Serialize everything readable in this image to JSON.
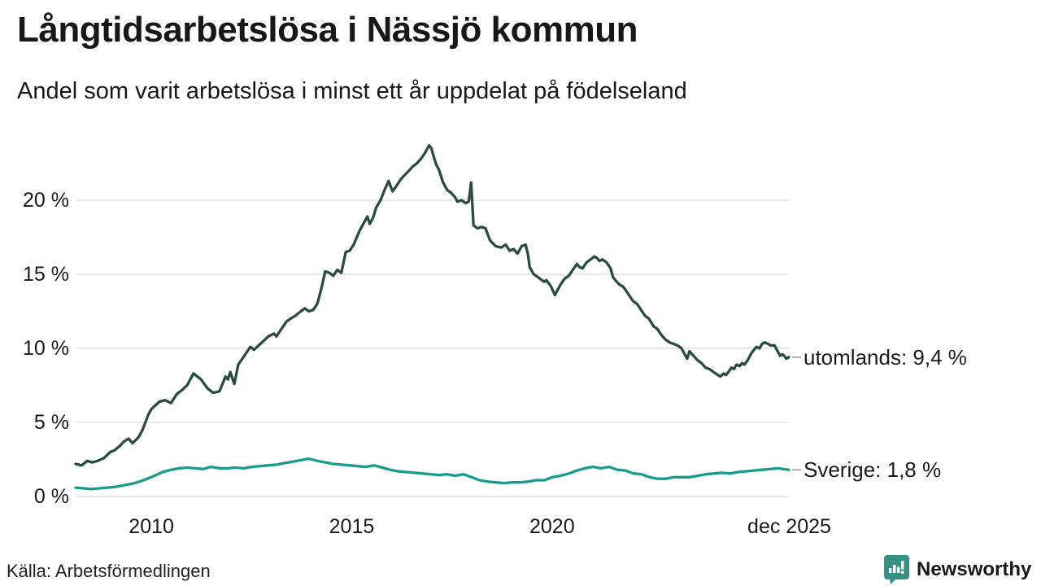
{
  "colors": {
    "utomlands": "#2a4c40",
    "sverige": "#199c8b",
    "grid": "#e2e2e2",
    "connector": "#9a9a9a",
    "text": "#1a1a1a",
    "brand": "#359184"
  },
  "footer": {
    "brand": "Newsworthy",
    "brand_icon": "newsworthy-bubble-chart-icon"
  },
  "chart_data": {
    "type": "line",
    "title": "Långtidsarbetslösa i Nässjö kommun",
    "subtitle": "Andel som varit arbetslösa i minst ett år uppdelat på födelseland",
    "source": "Källa: Arbetsförmedlingen",
    "legend_position": "end-of-line-labels-right",
    "grid": "horizontal-only",
    "x_axis": {
      "range": [
        2008.11,
        2025.91
      ],
      "ticks": [
        {
          "x": 2010,
          "label": "2010"
        },
        {
          "x": 2015,
          "label": "2015"
        },
        {
          "x": 2020,
          "label": "2020"
        },
        {
          "x": 2025.92,
          "label": "dec 2025"
        }
      ]
    },
    "y_axis": {
      "range": [
        0,
        24.5
      ],
      "unit": "%",
      "ticks": [
        {
          "v": 0,
          "label": "0 %"
        },
        {
          "v": 5,
          "label": "5 %"
        },
        {
          "v": 10,
          "label": "10 %"
        },
        {
          "v": 15,
          "label": "15 %"
        },
        {
          "v": 20,
          "label": "20 %"
        }
      ]
    },
    "series": [
      {
        "name": "utomlands",
        "label": "utomlands: 9,4 %",
        "last_value": 9.4,
        "color_key": "utomlands",
        "points": [
          [
            2008.11,
            2.2
          ],
          [
            2008.26,
            2.1
          ],
          [
            2008.4,
            2.4
          ],
          [
            2008.52,
            2.3
          ],
          [
            2008.66,
            2.4
          ],
          [
            2008.82,
            2.6
          ],
          [
            2008.97,
            3.0
          ],
          [
            2009.07,
            3.1
          ],
          [
            2009.21,
            3.4
          ],
          [
            2009.31,
            3.7
          ],
          [
            2009.43,
            3.9
          ],
          [
            2009.53,
            3.6
          ],
          [
            2009.68,
            4.0
          ],
          [
            2009.78,
            4.5
          ],
          [
            2009.92,
            5.5
          ],
          [
            2010.0,
            5.9
          ],
          [
            2010.08,
            6.1
          ],
          [
            2010.2,
            6.4
          ],
          [
            2010.34,
            6.5
          ],
          [
            2010.49,
            6.3
          ],
          [
            2010.63,
            6.9
          ],
          [
            2010.77,
            7.2
          ],
          [
            2010.89,
            7.5
          ],
          [
            2011.05,
            8.3
          ],
          [
            2011.24,
            7.9
          ],
          [
            2011.4,
            7.3
          ],
          [
            2011.54,
            7.0
          ],
          [
            2011.7,
            7.1
          ],
          [
            2011.85,
            8.1
          ],
          [
            2011.91,
            7.9
          ],
          [
            2011.97,
            8.4
          ],
          [
            2012.07,
            7.6
          ],
          [
            2012.17,
            8.9
          ],
          [
            2012.27,
            9.3
          ],
          [
            2012.37,
            9.7
          ],
          [
            2012.47,
            10.1
          ],
          [
            2012.56,
            9.9
          ],
          [
            2012.72,
            10.3
          ],
          [
            2012.92,
            10.8
          ],
          [
            2013.06,
            11.0
          ],
          [
            2013.12,
            10.8
          ],
          [
            2013.27,
            11.4
          ],
          [
            2013.37,
            11.8
          ],
          [
            2013.47,
            12.0
          ],
          [
            2013.59,
            12.2
          ],
          [
            2013.73,
            12.5
          ],
          [
            2013.83,
            12.7
          ],
          [
            2013.93,
            12.5
          ],
          [
            2014.04,
            12.6
          ],
          [
            2014.14,
            13.0
          ],
          [
            2014.24,
            14.0
          ],
          [
            2014.34,
            15.2
          ],
          [
            2014.44,
            15.1
          ],
          [
            2014.54,
            14.9
          ],
          [
            2014.64,
            15.3
          ],
          [
            2014.74,
            15.1
          ],
          [
            2014.85,
            16.5
          ],
          [
            2014.95,
            16.6
          ],
          [
            2015.05,
            17.0
          ],
          [
            2015.19,
            17.9
          ],
          [
            2015.31,
            18.5
          ],
          [
            2015.39,
            18.9
          ],
          [
            2015.45,
            18.4
          ],
          [
            2015.53,
            18.8
          ],
          [
            2015.61,
            19.5
          ],
          [
            2015.72,
            20.0
          ],
          [
            2015.82,
            20.7
          ],
          [
            2015.92,
            21.3
          ],
          [
            2016.02,
            20.6
          ],
          [
            2016.1,
            20.9
          ],
          [
            2016.22,
            21.4
          ],
          [
            2016.32,
            21.7
          ],
          [
            2016.43,
            22.0
          ],
          [
            2016.53,
            22.3
          ],
          [
            2016.63,
            22.5
          ],
          [
            2016.73,
            22.8
          ],
          [
            2016.83,
            23.2
          ],
          [
            2016.93,
            23.7
          ],
          [
            2016.99,
            23.5
          ],
          [
            2017.05,
            22.9
          ],
          [
            2017.11,
            22.4
          ],
          [
            2017.17,
            22.1
          ],
          [
            2017.28,
            21.2
          ],
          [
            2017.38,
            20.7
          ],
          [
            2017.48,
            20.5
          ],
          [
            2017.58,
            20.2
          ],
          [
            2017.64,
            19.9
          ],
          [
            2017.74,
            20.0
          ],
          [
            2017.84,
            19.8
          ],
          [
            2017.92,
            19.9
          ],
          [
            2017.98,
            21.2
          ],
          [
            2018.04,
            18.3
          ],
          [
            2018.14,
            18.1
          ],
          [
            2018.24,
            18.2
          ],
          [
            2018.34,
            18.1
          ],
          [
            2018.45,
            17.3
          ],
          [
            2018.59,
            16.9
          ],
          [
            2018.73,
            16.8
          ],
          [
            2018.84,
            17.0
          ],
          [
            2018.94,
            16.6
          ],
          [
            2019.04,
            16.7
          ],
          [
            2019.14,
            16.4
          ],
          [
            2019.24,
            16.9
          ],
          [
            2019.34,
            17.0
          ],
          [
            2019.4,
            16.3
          ],
          [
            2019.44,
            15.5
          ],
          [
            2019.54,
            15.0
          ],
          [
            2019.6,
            14.9
          ],
          [
            2019.7,
            14.7
          ],
          [
            2019.8,
            14.5
          ],
          [
            2019.86,
            14.6
          ],
          [
            2019.97,
            14.2
          ],
          [
            2020.07,
            13.6
          ],
          [
            2020.15,
            14.0
          ],
          [
            2020.21,
            14.3
          ],
          [
            2020.31,
            14.7
          ],
          [
            2020.42,
            14.9
          ],
          [
            2020.52,
            15.3
          ],
          [
            2020.62,
            15.7
          ],
          [
            2020.68,
            15.5
          ],
          [
            2020.76,
            15.4
          ],
          [
            2020.86,
            15.8
          ],
          [
            2020.96,
            16.0
          ],
          [
            2021.06,
            16.2
          ],
          [
            2021.12,
            16.1
          ],
          [
            2021.18,
            15.9
          ],
          [
            2021.26,
            16.0
          ],
          [
            2021.36,
            15.8
          ],
          [
            2021.46,
            15.4
          ],
          [
            2021.52,
            14.8
          ],
          [
            2021.58,
            14.6
          ],
          [
            2021.68,
            14.3
          ],
          [
            2021.76,
            14.2
          ],
          [
            2021.82,
            14.0
          ],
          [
            2021.92,
            13.6
          ],
          [
            2022.02,
            13.2
          ],
          [
            2022.12,
            13.0
          ],
          [
            2022.22,
            12.6
          ],
          [
            2022.32,
            12.2
          ],
          [
            2022.42,
            12.0
          ],
          [
            2022.53,
            11.5
          ],
          [
            2022.63,
            11.3
          ],
          [
            2022.73,
            10.9
          ],
          [
            2022.83,
            10.6
          ],
          [
            2022.93,
            10.4
          ],
          [
            2023.03,
            10.3
          ],
          [
            2023.13,
            10.2
          ],
          [
            2023.23,
            10.0
          ],
          [
            2023.29,
            9.7
          ],
          [
            2023.37,
            9.3
          ],
          [
            2023.43,
            9.8
          ],
          [
            2023.53,
            9.5
          ],
          [
            2023.63,
            9.2
          ],
          [
            2023.73,
            9.0
          ],
          [
            2023.83,
            8.7
          ],
          [
            2023.93,
            8.6
          ],
          [
            2024.03,
            8.4
          ],
          [
            2024.14,
            8.2
          ],
          [
            2024.2,
            8.1
          ],
          [
            2024.28,
            8.3
          ],
          [
            2024.34,
            8.2
          ],
          [
            2024.4,
            8.4
          ],
          [
            2024.48,
            8.7
          ],
          [
            2024.54,
            8.6
          ],
          [
            2024.6,
            8.9
          ],
          [
            2024.68,
            8.8
          ],
          [
            2024.74,
            9.0
          ],
          [
            2024.8,
            8.9
          ],
          [
            2024.88,
            9.2
          ],
          [
            2024.98,
            9.7
          ],
          [
            2025.04,
            9.9
          ],
          [
            2025.1,
            10.1
          ],
          [
            2025.18,
            10.0
          ],
          [
            2025.24,
            10.3
          ],
          [
            2025.31,
            10.4
          ],
          [
            2025.39,
            10.3
          ],
          [
            2025.45,
            10.2
          ],
          [
            2025.55,
            10.2
          ],
          [
            2025.61,
            9.9
          ],
          [
            2025.69,
            9.5
          ],
          [
            2025.75,
            9.6
          ],
          [
            2025.79,
            9.5
          ],
          [
            2025.85,
            9.3
          ],
          [
            2025.91,
            9.4
          ]
        ]
      },
      {
        "name": "Sverige",
        "label": "Sverige: 1,8 %",
        "last_value": 1.8,
        "color_key": "sverige",
        "points": [
          [
            2008.11,
            0.6
          ],
          [
            2008.3,
            0.55
          ],
          [
            2008.5,
            0.5
          ],
          [
            2008.7,
            0.55
          ],
          [
            2008.9,
            0.6
          ],
          [
            2009.1,
            0.65
          ],
          [
            2009.3,
            0.75
          ],
          [
            2009.5,
            0.85
          ],
          [
            2009.7,
            1.0
          ],
          [
            2009.9,
            1.2
          ],
          [
            2010.08,
            1.4
          ],
          [
            2010.28,
            1.65
          ],
          [
            2010.49,
            1.8
          ],
          [
            2010.69,
            1.9
          ],
          [
            2010.89,
            1.95
          ],
          [
            2011.09,
            1.9
          ],
          [
            2011.29,
            1.85
          ],
          [
            2011.49,
            2.0
          ],
          [
            2011.7,
            1.9
          ],
          [
            2011.9,
            1.9
          ],
          [
            2012.1,
            1.95
          ],
          [
            2012.31,
            1.9
          ],
          [
            2012.51,
            2.0
          ],
          [
            2012.71,
            2.05
          ],
          [
            2012.92,
            2.1
          ],
          [
            2013.12,
            2.15
          ],
          [
            2013.32,
            2.25
          ],
          [
            2013.53,
            2.35
          ],
          [
            2013.73,
            2.45
          ],
          [
            2013.93,
            2.55
          ],
          [
            2014.14,
            2.4
          ],
          [
            2014.34,
            2.3
          ],
          [
            2014.54,
            2.2
          ],
          [
            2014.74,
            2.15
          ],
          [
            2014.95,
            2.1
          ],
          [
            2015.15,
            2.05
          ],
          [
            2015.35,
            2.0
          ],
          [
            2015.56,
            2.1
          ],
          [
            2015.76,
            1.95
          ],
          [
            2015.96,
            1.8
          ],
          [
            2016.16,
            1.7
          ],
          [
            2016.36,
            1.65
          ],
          [
            2016.57,
            1.6
          ],
          [
            2016.77,
            1.55
          ],
          [
            2016.97,
            1.5
          ],
          [
            2017.18,
            1.45
          ],
          [
            2017.38,
            1.5
          ],
          [
            2017.58,
            1.4
          ],
          [
            2017.79,
            1.5
          ],
          [
            2017.99,
            1.3
          ],
          [
            2018.19,
            1.1
          ],
          [
            2018.4,
            1.0
          ],
          [
            2018.6,
            0.95
          ],
          [
            2018.8,
            0.9
          ],
          [
            2019.0,
            0.95
          ],
          [
            2019.2,
            0.95
          ],
          [
            2019.4,
            1.0
          ],
          [
            2019.6,
            1.1
          ],
          [
            2019.81,
            1.1
          ],
          [
            2020.01,
            1.3
          ],
          [
            2020.21,
            1.4
          ],
          [
            2020.42,
            1.55
          ],
          [
            2020.62,
            1.75
          ],
          [
            2020.82,
            1.9
          ],
          [
            2021.02,
            2.0
          ],
          [
            2021.22,
            1.9
          ],
          [
            2021.42,
            2.0
          ],
          [
            2021.63,
            1.8
          ],
          [
            2021.83,
            1.75
          ],
          [
            2022.03,
            1.55
          ],
          [
            2022.23,
            1.5
          ],
          [
            2022.43,
            1.3
          ],
          [
            2022.63,
            1.2
          ],
          [
            2022.83,
            1.2
          ],
          [
            2023.04,
            1.3
          ],
          [
            2023.24,
            1.3
          ],
          [
            2023.44,
            1.3
          ],
          [
            2023.64,
            1.4
          ],
          [
            2023.84,
            1.5
          ],
          [
            2024.04,
            1.55
          ],
          [
            2024.24,
            1.6
          ],
          [
            2024.44,
            1.55
          ],
          [
            2024.64,
            1.65
          ],
          [
            2024.84,
            1.7
          ],
          [
            2025.04,
            1.75
          ],
          [
            2025.24,
            1.8
          ],
          [
            2025.44,
            1.85
          ],
          [
            2025.64,
            1.9
          ],
          [
            2025.91,
            1.8
          ]
        ]
      }
    ]
  }
}
